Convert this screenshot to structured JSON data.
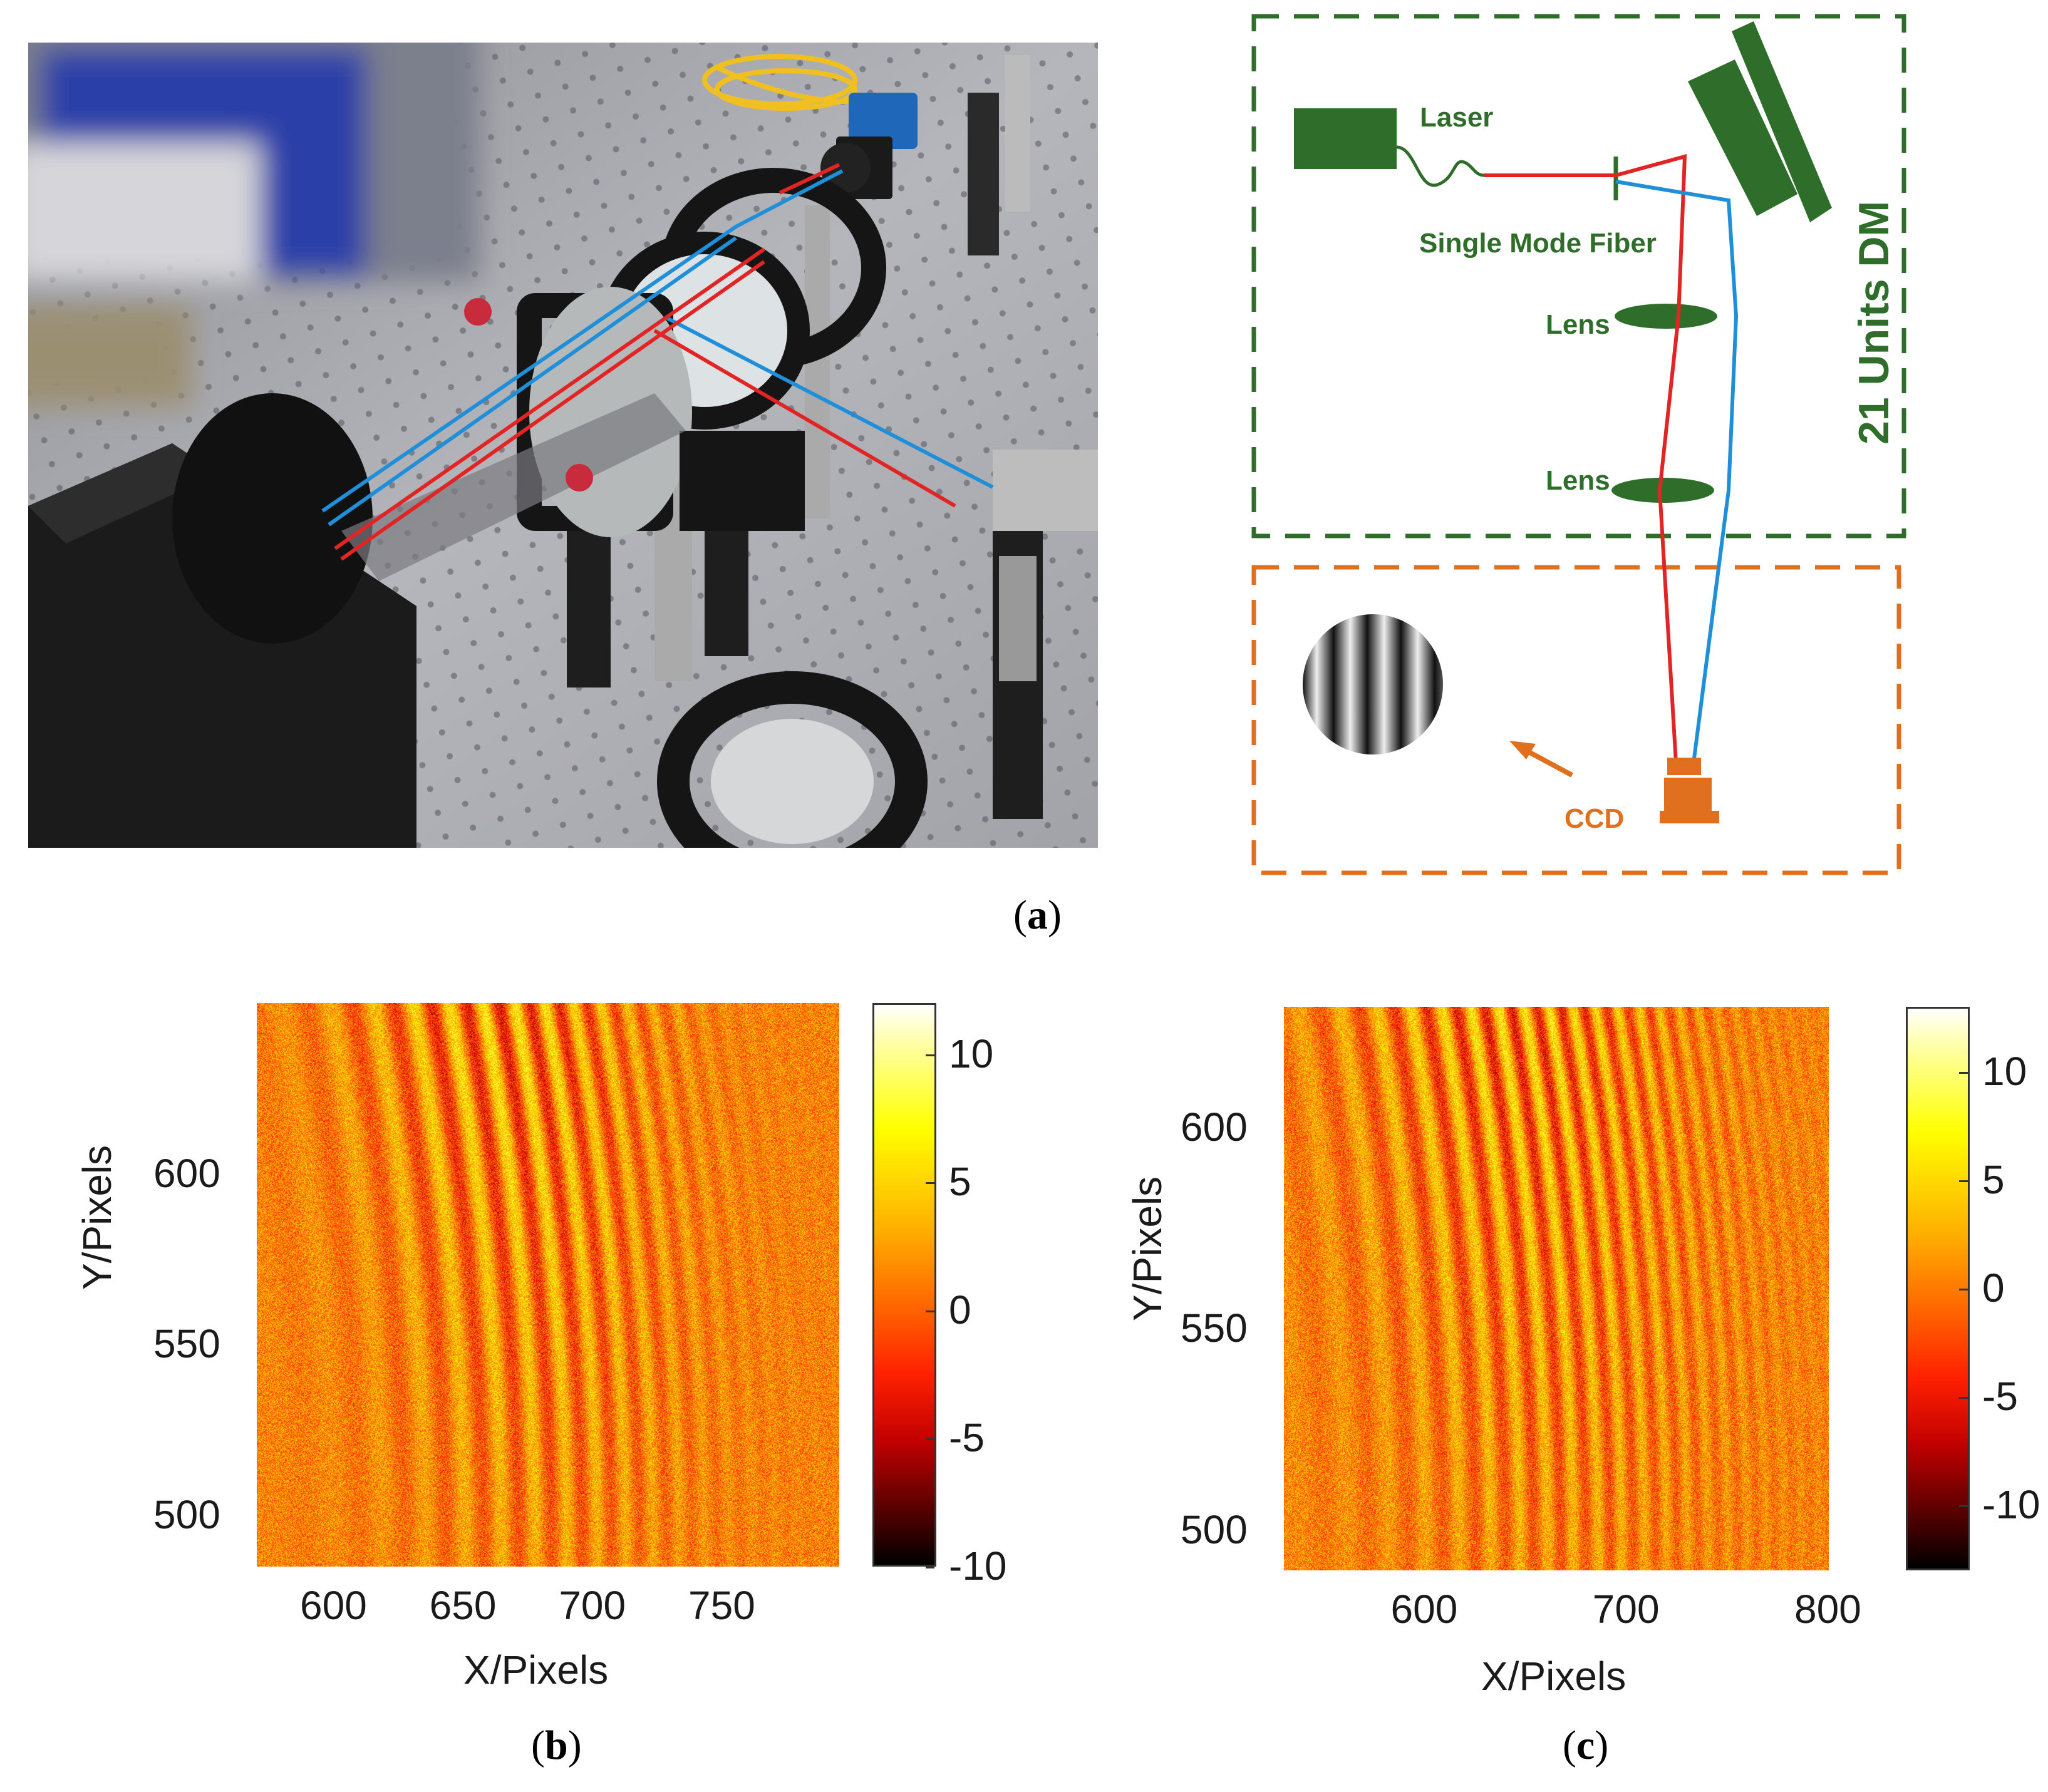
{
  "figure": {
    "panel_a": {
      "label": "a",
      "schematic": {
        "laser_label": "Laser",
        "fiber_label": "Single Mode Fiber",
        "lens1_label": "Lens",
        "lens2_label": "Lens",
        "dm_label": "21 Units DM",
        "ccd_label": "CCD",
        "green_color": "#2e6e2a",
        "orange_color": "#e0701e"
      }
    },
    "panel_b": {
      "label": "b"
    },
    "panel_c": {
      "label": "c"
    }
  },
  "chart_data": [
    {
      "type": "heatmap",
      "panel": "b",
      "xlabel": "X/Pixels",
      "ylabel": "Y/Pixels",
      "xticks": [
        600,
        650,
        700,
        750
      ],
      "yticks": [
        500,
        550,
        600
      ],
      "xlim": [
        570,
        795
      ],
      "ylim": [
        485,
        650
      ],
      "colorbar_ticks": [
        10,
        5,
        0,
        -5,
        -10
      ],
      "colorbar_range": [
        -10,
        12
      ],
      "colormap": "hot",
      "description_of_pattern": "curved vertical interference fringes, strongest near x 640-720"
    },
    {
      "type": "heatmap",
      "panel": "c",
      "xlabel": "X/Pixels",
      "ylabel": "Y/Pixels",
      "xticks": [
        600,
        700,
        800
      ],
      "yticks": [
        500,
        550,
        600
      ],
      "xlim": [
        530,
        800
      ],
      "ylim": [
        490,
        630
      ],
      "colorbar_ticks": [
        10,
        5,
        0,
        -5,
        -10
      ],
      "colorbar_range": [
        -13,
        13
      ],
      "colormap": "hot",
      "description_of_pattern": "curved vertical interference fringes, strongest near x 620-730"
    }
  ]
}
